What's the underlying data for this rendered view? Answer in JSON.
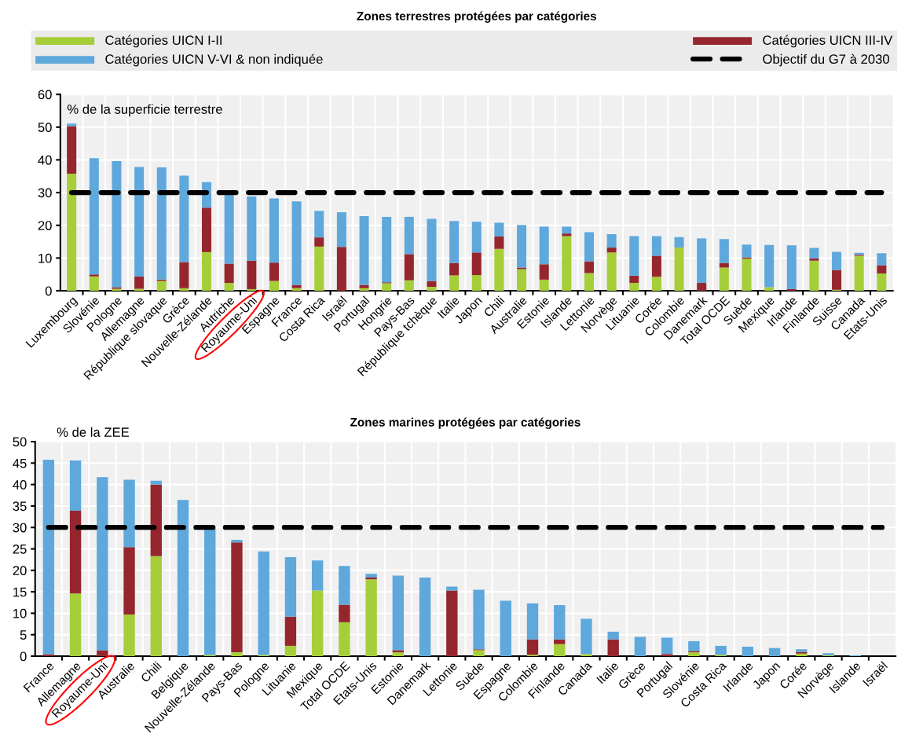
{
  "chart_data": [
    {
      "type": "bar",
      "title": "Zones terrestres protégées par catégories",
      "ylabel": "% de la superficie terrestre",
      "stacked": true,
      "grid": true,
      "legend": "top",
      "categories": [
        "Luxembourg",
        "Slovénie",
        "Pologne",
        "Allemagne",
        "République slovaque",
        "Grèce",
        "Nouvelle-Zélande",
        "Autriche",
        "Royaume-Uni",
        "Espagne",
        "France",
        "Costa Rica",
        "Israël",
        "Portugal",
        "Hongrie",
        "Pays-Bas",
        "République tchèque",
        "Italie",
        "Japon",
        "Chili",
        "Australie",
        "Estonie",
        "Islande",
        "Lettonie",
        "Norvège",
        "Lituanie",
        "Corée",
        "Colombie",
        "Danemark",
        "Total OCDE",
        "Suède",
        "Mexique",
        "Irlande",
        "Finlande",
        "Suisse",
        "Canada",
        "Etats-Unis"
      ],
      "series": [
        {
          "name": "Catégories UICN I-II",
          "color": "#a6ce39",
          "values": [
            35.8,
            4.4,
            0.6,
            0.6,
            3.0,
            0.8,
            11.8,
            2.4,
            0.5,
            3.0,
            0.8,
            13.5,
            0,
            0.8,
            2.3,
            3.2,
            1.2,
            4.7,
            4.8,
            12.8,
            6.6,
            3.4,
            16.7,
            5.4,
            11.7,
            2.4,
            4.3,
            13.2,
            0,
            7.1,
            9.8,
            1.1,
            0,
            9.2,
            0.3,
            10.7,
            5.3
          ]
        },
        {
          "name": "Catégories UICN III-IV",
          "color": "#96262d",
          "values": [
            14.5,
            0.6,
            0.5,
            3.7,
            0.4,
            8.0,
            13.6,
            5.9,
            8.7,
            5.6,
            1.0,
            2.8,
            13.4,
            1.0,
            0.3,
            8.0,
            1.8,
            3.8,
            6.9,
            3.8,
            0.5,
            4.7,
            0.8,
            3.6,
            1.5,
            2.2,
            6.4,
            0,
            2.4,
            1.4,
            0.4,
            0,
            0.5,
            0.7,
            6.1,
            0.3,
            2.5
          ]
        },
        {
          "name": "Catégories UICN V-VI & non indiquée",
          "color": "#5ea8dc",
          "values": [
            0.8,
            35.5,
            38.5,
            33.5,
            34.3,
            26.4,
            7.8,
            21.0,
            19.6,
            19.6,
            25.5,
            8.1,
            10.6,
            21.0,
            20.0,
            11.4,
            19.0,
            12.8,
            9.4,
            4.2,
            13.0,
            11.5,
            2.1,
            8.9,
            4.1,
            12.1,
            6.0,
            3.2,
            13.6,
            7.3,
            3.9,
            12.9,
            13.4,
            3.2,
            5.5,
            0.6,
            3.7
          ]
        }
      ],
      "ylim": [
        0,
        60
      ],
      "yticks": [
        0,
        10,
        20,
        30,
        40,
        50,
        60
      ],
      "ref_lines": [
        {
          "axis": "y",
          "value": 30,
          "label": "Objectif du G7 à 2030",
          "color": "#000000",
          "line_style": "dashed"
        }
      ]
    },
    {
      "type": "bar",
      "title": "Zones marines protégées par catégories",
      "ylabel": "% de la ZEE",
      "stacked": true,
      "grid": true,
      "categories": [
        "France",
        "Allemagne",
        "Royaume-Uni",
        "Australie",
        "Chili",
        "Belgique",
        "Nouvelle-Zélande",
        "Pays-Bas",
        "Pologne",
        "Lituanie",
        "Mexique",
        "Total OCDE",
        "Etats-Unis",
        "Estonie",
        "Danemark",
        "Lettonie",
        "Suède",
        "Espagne",
        "Colombie",
        "Finlande",
        "Canada",
        "Italie",
        "Grèce",
        "Portugal",
        "Slovénie",
        "Costa Rica",
        "Irlande",
        "Japon",
        "Corée",
        "Norvège",
        "Islande",
        "Israël"
      ],
      "series": [
        {
          "color": "#a6ce39",
          "values": [
            0,
            14.6,
            0,
            9.7,
            23.3,
            0,
            0.3,
            0.9,
            0.3,
            2.4,
            15.3,
            7.9,
            17.9,
            0.9,
            0,
            0,
            1.4,
            0,
            0.3,
            2.8,
            0.5,
            0,
            0,
            0,
            0.9,
            0.3,
            0,
            0,
            0.6,
            0.2,
            0,
            0
          ]
        },
        {
          "color": "#96262d",
          "values": [
            0.4,
            19.3,
            1.4,
            15.7,
            16.7,
            0,
            0,
            25.6,
            0,
            6.8,
            0,
            4.1,
            0.4,
            0.5,
            0,
            15.3,
            0.2,
            0,
            3.6,
            1.1,
            0,
            3.9,
            0,
            0.5,
            0.3,
            0,
            0,
            0,
            0.4,
            0,
            0,
            0
          ]
        },
        {
          "color": "#5ea8dc",
          "values": [
            45.4,
            11.7,
            40.3,
            15.7,
            0.9,
            36.4,
            29.6,
            0.6,
            24.1,
            13.9,
            7.0,
            9.0,
            0.9,
            17.4,
            18.3,
            0.9,
            13.9,
            12.9,
            8.4,
            8.0,
            8.2,
            1.8,
            4.5,
            3.8,
            2.3,
            2.1,
            2.2,
            1.9,
            0.6,
            0.5,
            0.2,
            0
          ]
        }
      ],
      "ylim": [
        0,
        50
      ],
      "yticks": [
        0,
        5,
        10,
        15,
        20,
        25,
        30,
        35,
        40,
        45,
        50
      ],
      "ref_lines": [
        {
          "axis": "y",
          "value": 30,
          "color": "#000000",
          "line_style": "dashed"
        }
      ]
    }
  ]
}
